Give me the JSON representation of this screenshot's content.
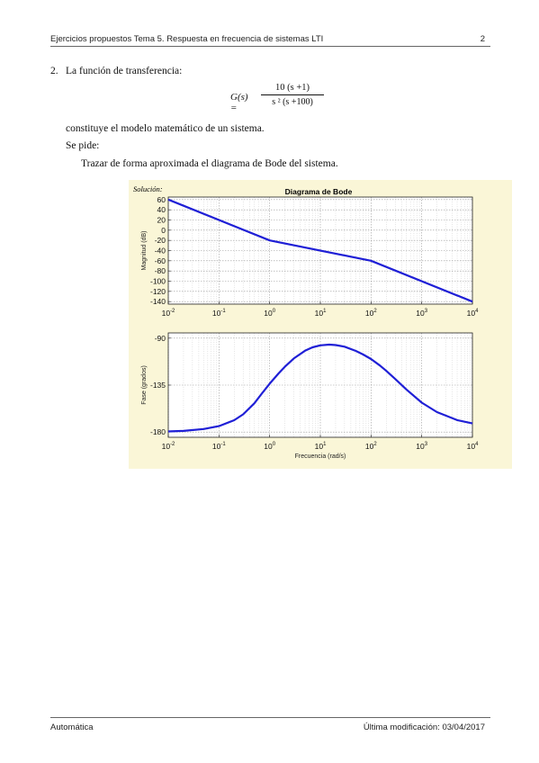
{
  "header": {
    "title": "Ejercicios propuestos Tema 5. Respuesta en frecuencia de sistemas LTI",
    "page_number": "2"
  },
  "exercise": {
    "number": "2.",
    "intro": "La función de transferencia:",
    "equation": {
      "lhs": "G(s) =",
      "numerator": "10 (s +1)",
      "denominator": "s ² (s +100)"
    },
    "after": "constituye el modelo matemático de un sistema.",
    "se_pide": "Se pide:",
    "task": "Trazar de forma aproximada el diagrama de Bode del sistema."
  },
  "figure": {
    "solution_label": "Solución:"
  },
  "footer": {
    "left": "Automática",
    "right": "Última modificación: 03/04/2017"
  },
  "colors": {
    "curve": "#1f1fd6",
    "figure_bg": "#faf6d7",
    "plot_bg": "#ffffff"
  },
  "chart_data": [
    {
      "type": "line",
      "title": "Diagrama de Bode",
      "xlabel": "",
      "ylabel": "Magnitud (dB)",
      "x_scale": "log",
      "xlim": [
        0.01,
        10000
      ],
      "ylim": [
        -145,
        65
      ],
      "x_ticks": [
        0.01,
        0.1,
        1,
        10,
        100,
        1000,
        10000
      ],
      "x_tick_labels": [
        "10-2",
        "10-1",
        "100",
        "101",
        "102",
        "103",
        "104"
      ],
      "y_ticks": [
        60,
        40,
        20,
        0,
        -20,
        -40,
        -60,
        -80,
        -100,
        -120,
        -140
      ],
      "y_tick_labels": [
        "60",
        "40",
        "20",
        "0",
        "-20",
        "-40",
        "-60",
        "-80",
        "-100",
        "-120",
        "-140"
      ],
      "grid": true,
      "series": [
        {
          "x": [
            0.01,
            1,
            100,
            10000
          ],
          "y": [
            60,
            -20,
            -60,
            -140
          ]
        }
      ]
    },
    {
      "type": "line",
      "title": "",
      "xlabel": "Frecuencia (rad/s)",
      "ylabel": "Fase (grados)",
      "x_scale": "log",
      "xlim": [
        0.01,
        10000
      ],
      "ylim": [
        -185,
        -85
      ],
      "x_ticks": [
        0.01,
        0.1,
        1,
        10,
        100,
        1000,
        10000
      ],
      "x_tick_labels": [
        "10-2",
        "10-1",
        "100",
        "101",
        "102",
        "103",
        "104"
      ],
      "y_ticks": [
        -90,
        -135,
        -180
      ],
      "y_tick_labels": [
        "-90",
        "-135",
        "-180"
      ],
      "grid": true,
      "series": [
        {
          "x": [
            0.01,
            0.02,
            0.05,
            0.1,
            0.2,
            0.3,
            0.5,
            0.7,
            1,
            1.5,
            2,
            3,
            5,
            7,
            10,
            15,
            20,
            30,
            50,
            70,
            100,
            150,
            200,
            300,
            500,
            1000,
            2000,
            5000,
            10000
          ],
          "y": [
            -179.4,
            -178.9,
            -177.1,
            -174.3,
            -168.6,
            -163.0,
            -152.4,
            -143.2,
            -133.6,
            -123.8,
            -117.4,
            -109.5,
            -102.1,
            -98.8,
            -96.9,
            -96.2,
            -96.6,
            -98.2,
            -102.2,
            -105.7,
            -110.0,
            -116.3,
            -121.4,
            -129.1,
            -139.2,
            -151.8,
            -160.9,
            -168.5,
            -171.7
          ]
        }
      ]
    }
  ]
}
